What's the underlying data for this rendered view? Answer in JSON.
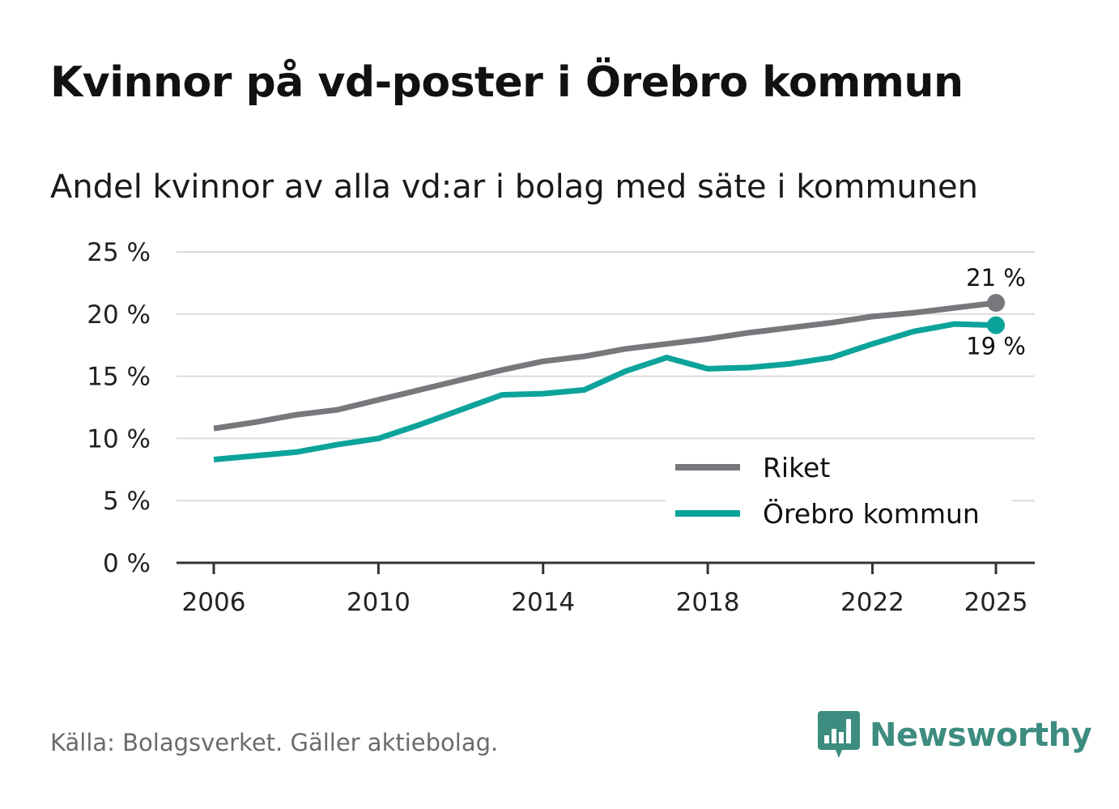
{
  "title": "Kvinnor på vd-poster i Örebro kommun",
  "subtitle": "Andel kvinnor av alla vd:ar i bolag med säte i kommunen",
  "source": "Källa: Bolagsverket. Gäller aktiebolag.",
  "brand": {
    "name": "Newsworthy",
    "icon": "newsworthy-logo-icon",
    "color": "#3d8c80"
  },
  "chart_data": {
    "type": "line",
    "title": "Kvinnor på vd-poster i Örebro kommun",
    "subtitle": "Andel kvinnor av alla vd:ar i bolag med säte i kommunen",
    "xlabel": "",
    "ylabel": "",
    "x": [
      2006,
      2007,
      2008,
      2009,
      2010,
      2011,
      2012,
      2013,
      2014,
      2015,
      2016,
      2017,
      2018,
      2019,
      2020,
      2021,
      2022,
      2023,
      2024,
      2025
    ],
    "x_ticks": [
      "2006",
      "2010",
      "2014",
      "2018",
      "2022",
      "2025"
    ],
    "y_ticks": [
      "0 %",
      "5 %",
      "10 %",
      "15 %",
      "20 %",
      "25 %"
    ],
    "ylim": [
      0,
      25
    ],
    "grid": true,
    "legend_position": "bottom-right",
    "series": [
      {
        "name": "Riket",
        "color": "#77777c",
        "values": [
          10.8,
          11.3,
          11.9,
          12.3,
          13.1,
          13.9,
          14.7,
          15.5,
          16.2,
          16.6,
          17.2,
          17.6,
          18.0,
          18.5,
          18.9,
          19.3,
          19.8,
          20.1,
          20.5,
          20.9
        ],
        "end_label": "21 %"
      },
      {
        "name": "Örebro kommun",
        "color": "#0ca39b",
        "values": [
          8.3,
          8.6,
          8.9,
          9.5,
          10.0,
          11.1,
          12.3,
          13.5,
          13.6,
          13.9,
          15.4,
          16.5,
          15.6,
          15.7,
          16.0,
          16.5,
          17.6,
          18.6,
          19.2,
          19.1
        ],
        "end_label": "19 %"
      }
    ]
  }
}
